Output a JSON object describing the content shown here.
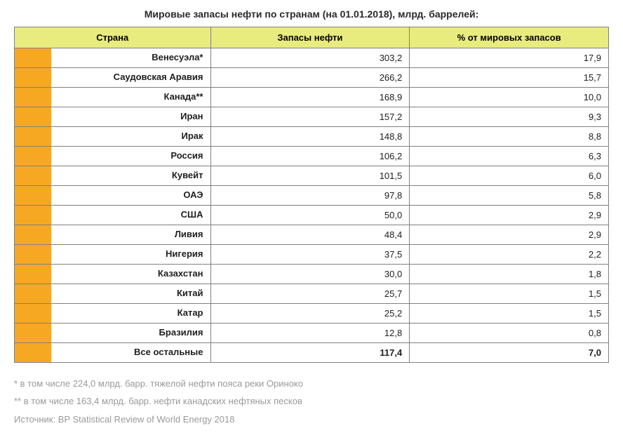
{
  "title": "Мировые запасы нефти по странам (на 01.01.2018), млрд. баррелей:",
  "table": {
    "type": "table",
    "columns": [
      "Страна",
      "Запасы нефти",
      "% от мировых запасов"
    ],
    "col_widths": [
      "33%",
      "33.5%",
      "33.5%"
    ],
    "header_bg": "#e8eb7e",
    "accent_color": "#f7a823",
    "border_color": "#808080",
    "text_color": "#202020",
    "fontsize": 13,
    "rows": [
      {
        "country": "Венесуэла*",
        "reserves": "303,2",
        "pct": "17,9",
        "bold": false
      },
      {
        "country": "Саудовская Аравия",
        "reserves": "266,2",
        "pct": "15,7",
        "bold": false
      },
      {
        "country": "Канада**",
        "reserves": "168,9",
        "pct": "10,0",
        "bold": false
      },
      {
        "country": "Иран",
        "reserves": "157,2",
        "pct": "9,3",
        "bold": false
      },
      {
        "country": "Ирак",
        "reserves": "148,8",
        "pct": "8,8",
        "bold": false
      },
      {
        "country": "Россия",
        "reserves": "106,2",
        "pct": "6,3",
        "bold": false
      },
      {
        "country": "Кувейт",
        "reserves": "101,5",
        "pct": "6,0",
        "bold": false
      },
      {
        "country": "ОАЭ",
        "reserves": "97,8",
        "pct": "5,8",
        "bold": false
      },
      {
        "country": "США",
        "reserves": "50,0",
        "pct": "2,9",
        "bold": false
      },
      {
        "country": "Ливия",
        "reserves": "48,4",
        "pct": "2,9",
        "bold": false
      },
      {
        "country": "Нигерия",
        "reserves": "37,5",
        "pct": "2,2",
        "bold": false
      },
      {
        "country": "Казахстан",
        "reserves": "30,0",
        "pct": "1,8",
        "bold": false
      },
      {
        "country": "Китай",
        "reserves": "25,7",
        "pct": "1,5",
        "bold": false
      },
      {
        "country": "Катар",
        "reserves": "25,2",
        "pct": "1,5",
        "bold": false
      },
      {
        "country": "Бразилия",
        "reserves": "12,8",
        "pct": "0,8",
        "bold": false
      },
      {
        "country": "Все остальные",
        "reserves": "117,4",
        "pct": "7,0",
        "bold": true
      }
    ]
  },
  "footnotes": {
    "note1": "* в том числе 224,0 млрд. барр. тяжелой нефти пояса реки Ориноко",
    "note2": "** в том числе 163,4 млрд. барр. нефти канадских нефтяных песков",
    "source": "Источник: BP Statistical Review of World Energy 2018",
    "color": "#9a9a9a"
  }
}
